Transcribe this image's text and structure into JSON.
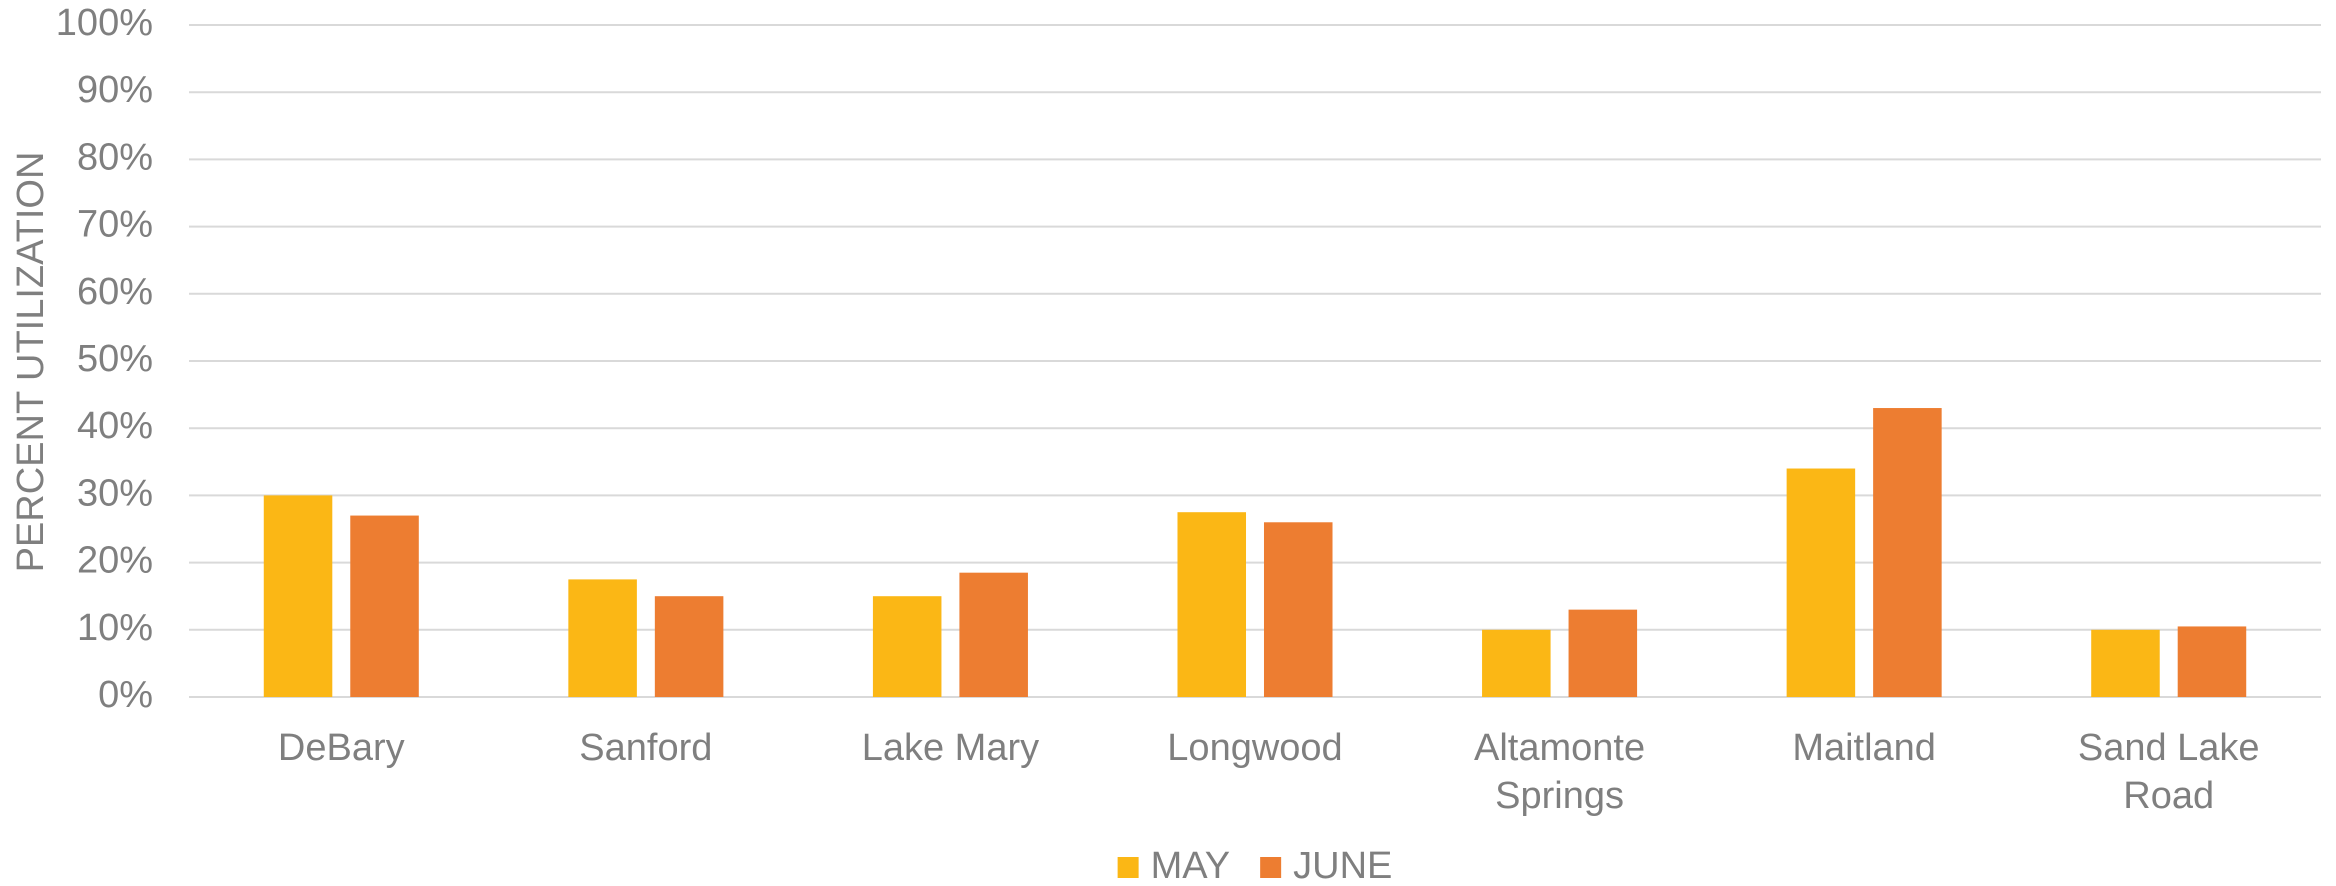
{
  "chart_data": {
    "type": "bar",
    "y_axis_label": "PERCENT UTILIZATION",
    "categories": [
      "DeBary",
      "Sanford",
      "Lake Mary",
      "Longwood",
      "Altamonte Springs",
      "Maitland",
      "Sand Lake Road"
    ],
    "series": [
      {
        "name": "MAY",
        "color": "#fbb715",
        "values": [
          30,
          17.5,
          15,
          27.5,
          10,
          34,
          10
        ]
      },
      {
        "name": "JUNE",
        "color": "#ed7d31",
        "values": [
          27,
          15,
          18.5,
          26,
          13,
          43,
          10.5
        ]
      }
    ],
    "ylim": [
      0,
      100
    ],
    "yticks": [
      {
        "value": 0,
        "label": "0%"
      },
      {
        "value": 10,
        "label": "10%"
      },
      {
        "value": 20,
        "label": "20%"
      },
      {
        "value": 30,
        "label": "30%"
      },
      {
        "value": 40,
        "label": "40%"
      },
      {
        "value": 50,
        "label": "50%"
      },
      {
        "value": 60,
        "label": "60%"
      },
      {
        "value": 70,
        "label": "70%"
      },
      {
        "value": 80,
        "label": "80%"
      },
      {
        "value": 90,
        "label": "90%"
      },
      {
        "value": 100,
        "label": "100%"
      }
    ],
    "grid": true,
    "legend": "bottom"
  }
}
